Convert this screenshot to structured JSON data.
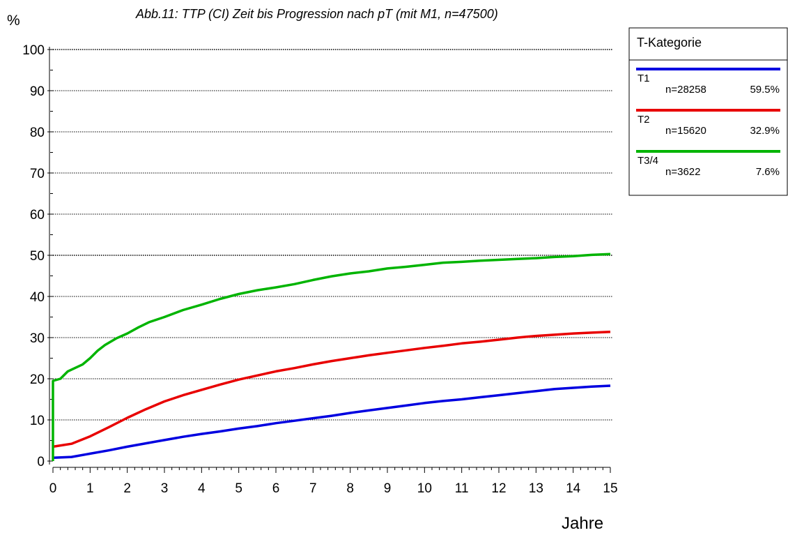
{
  "chart_data": {
    "type": "line",
    "title": "Abb.11: TTP (CI) Zeit bis Progression nach pT (mit M1, n=47500)",
    "ylabel": "%",
    "xlabel": "Jahre",
    "xlim": [
      0,
      15
    ],
    "ylim": [
      0,
      100
    ],
    "x_ticks": [
      "0",
      "1",
      "2",
      "3",
      "4",
      "5",
      "6",
      "7",
      "8",
      "9",
      "10",
      "11",
      "12",
      "13",
      "14",
      "15"
    ],
    "y_ticks": [
      "0",
      "10",
      "20",
      "30",
      "40",
      "50",
      "60",
      "70",
      "80",
      "90",
      "100"
    ],
    "grid": "horizontal dotted",
    "legend_position": "top-right",
    "legend": {
      "title": "T-Kategorie",
      "entries": [
        {
          "label": "T1",
          "n": "n=28258",
          "pct": "59.5%",
          "color": "#0000e0"
        },
        {
          "label": "T2",
          "n": "n=15620",
          "pct": "32.9%",
          "color": "#e80000"
        },
        {
          "label": "T3/4",
          "n": "n=3622",
          "pct": "7.6%",
          "color": "#00b400"
        }
      ]
    },
    "series": [
      {
        "name": "T1",
        "color": "#0000e0",
        "x": [
          0,
          0.5,
          1,
          1.5,
          2,
          2.5,
          3,
          3.5,
          4,
          4.5,
          5,
          5.5,
          6,
          6.5,
          7,
          7.5,
          8,
          8.5,
          9,
          9.5,
          10,
          10.5,
          11,
          11.5,
          12,
          12.5,
          13,
          13.5,
          14,
          14.5,
          15
        ],
        "y": [
          0.8,
          1.0,
          1.8,
          2.6,
          3.5,
          4.3,
          5.1,
          5.9,
          6.6,
          7.2,
          7.9,
          8.5,
          9.2,
          9.8,
          10.4,
          11.0,
          11.7,
          12.3,
          12.9,
          13.5,
          14.1,
          14.6,
          15.0,
          15.5,
          16.0,
          16.5,
          17.0,
          17.5,
          17.8,
          18.1,
          18.3
        ]
      },
      {
        "name": "T2",
        "color": "#e80000",
        "x": [
          0,
          0.5,
          1,
          1.5,
          2,
          2.5,
          3,
          3.5,
          4,
          4.5,
          5,
          5.5,
          6,
          6.5,
          7,
          7.5,
          8,
          8.5,
          9,
          9.5,
          10,
          10.5,
          11,
          11.5,
          12,
          12.5,
          13,
          13.5,
          14,
          14.5,
          15
        ],
        "y": [
          3.5,
          4.2,
          6.0,
          8.2,
          10.5,
          12.6,
          14.5,
          16.0,
          17.3,
          18.6,
          19.8,
          20.8,
          21.8,
          22.6,
          23.5,
          24.3,
          25.0,
          25.7,
          26.3,
          26.9,
          27.5,
          28.0,
          28.6,
          29.0,
          29.5,
          30.0,
          30.4,
          30.7,
          31.0,
          31.2,
          31.4
        ]
      },
      {
        "name": "T3/4",
        "color": "#00b400",
        "x_steps": [
          0,
          0,
          0.2,
          0.4,
          0.8,
          1,
          1.2,
          1.4,
          1.7,
          2,
          2.3,
          2.6,
          3,
          3.5,
          4,
          4.5,
          5,
          5.5,
          6,
          6.5,
          7,
          7.5,
          8,
          8.5,
          9,
          9.5,
          10,
          10.5,
          11,
          11.5,
          12,
          12.5,
          13,
          13.5,
          14,
          14.5,
          15
        ],
        "x": [
          0,
          0,
          0.2,
          0.4,
          0.8,
          1,
          1.2,
          1.4,
          1.7,
          2,
          2.3,
          2.6,
          3,
          3.5,
          4,
          4.5,
          5,
          5.5,
          6,
          6.5,
          7,
          7.5,
          8,
          8.5,
          9,
          9.5,
          10,
          10.5,
          11,
          11.5,
          12,
          12.5,
          13,
          13.5,
          14,
          14.5,
          15
        ],
        "y": [
          0,
          19.5,
          20.0,
          21.8,
          23.5,
          25.0,
          26.8,
          28.2,
          29.8,
          31.0,
          32.5,
          33.8,
          35.0,
          36.7,
          38.0,
          39.4,
          40.6,
          41.5,
          42.2,
          43.0,
          44.0,
          44.9,
          45.6,
          46.1,
          46.8,
          47.2,
          47.7,
          48.2,
          48.4,
          48.7,
          48.9,
          49.1,
          49.3,
          49.6,
          49.8,
          50.1,
          50.3
        ]
      }
    ]
  }
}
